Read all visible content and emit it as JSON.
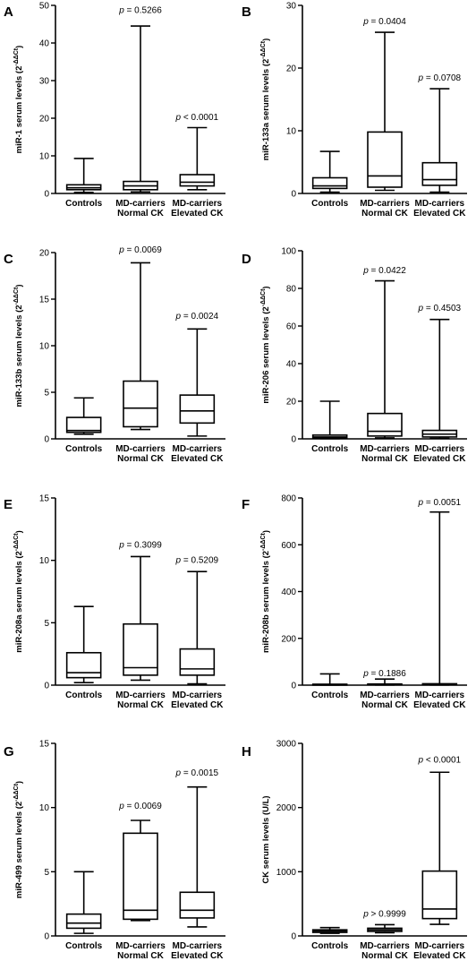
{
  "chart_data": [
    {
      "type": "box",
      "panel": "A",
      "ylabel": "miR-1 serum levels (2",
      "ylabel_sup": "-ΔΔCt",
      "ylabel_end": ")",
      "ylim": [
        0,
        50
      ],
      "yticks": [
        "0",
        "10",
        "20",
        "30",
        "40",
        "50"
      ],
      "categories": [
        [
          "Controls"
        ],
        [
          "MD-carriers",
          "Normal CK"
        ],
        [
          "MD-carriers",
          "Elevated CK"
        ]
      ],
      "boxes": [
        {
          "min": 0.3,
          "q1": 1.0,
          "median": 1.5,
          "q3": 2.3,
          "max": 9.3
        },
        {
          "min": 0.4,
          "q1": 1.0,
          "median": 2.0,
          "q3": 3.2,
          "max": 44.5
        },
        {
          "min": 1.0,
          "q1": 2.0,
          "median": 3.0,
          "q3": 5.0,
          "max": 17.5
        }
      ],
      "pvalues": [
        "",
        "p = 0.5266",
        "p < 0.0001"
      ],
      "pvalue_y": [
        null,
        48.0,
        19.5
      ]
    },
    {
      "type": "box",
      "panel": "B",
      "ylabel": "miR-133a serum levels (2",
      "ylabel_sup": "-ΔΔCt",
      "ylabel_end": ")",
      "ylim": [
        0,
        30
      ],
      "yticks": [
        "0",
        "10",
        "20",
        "30"
      ],
      "categories": [
        [
          "Controls"
        ],
        [
          "MD-carriers",
          "Normal CK"
        ],
        [
          "MD-carriers",
          "Elevated CK"
        ]
      ],
      "boxes": [
        {
          "min": 0.2,
          "q1": 0.8,
          "median": 1.2,
          "q3": 2.5,
          "max": 6.7
        },
        {
          "min": 0.5,
          "q1": 1.0,
          "median": 2.8,
          "q3": 9.8,
          "max": 25.7
        },
        {
          "min": 0.2,
          "q1": 1.3,
          "median": 2.2,
          "q3": 4.9,
          "max": 16.7
        }
      ],
      "pvalues": [
        "",
        "p = 0.0404",
        "p = 0.0708"
      ],
      "pvalue_y": [
        null,
        27.0,
        18.0
      ]
    },
    {
      "type": "box",
      "panel": "C",
      "ylabel": "miR-133b serum levels (2",
      "ylabel_sup": "-ΔΔCt",
      "ylabel_end": ")",
      "ylim": [
        0,
        20
      ],
      "yticks": [
        "0",
        "5",
        "10",
        "15",
        "20"
      ],
      "categories": [
        [
          "Controls"
        ],
        [
          "MD-carriers",
          "Normal CK"
        ],
        [
          "MD-carriers",
          "Elevated CK"
        ]
      ],
      "boxes": [
        {
          "min": 0.5,
          "q1": 0.7,
          "median": 0.9,
          "q3": 2.3,
          "max": 4.4
        },
        {
          "min": 1.0,
          "q1": 1.3,
          "median": 3.3,
          "q3": 6.2,
          "max": 18.9
        },
        {
          "min": 0.3,
          "q1": 1.7,
          "median": 3.0,
          "q3": 4.7,
          "max": 11.8
        }
      ],
      "pvalues": [
        "",
        "p = 0.0069",
        "p = 0.0024"
      ],
      "pvalue_y": [
        null,
        20.0,
        12.9
      ]
    },
    {
      "type": "box",
      "panel": "D",
      "ylabel": "miR-206 serum levels (2",
      "ylabel_sup": "-ΔΔCt",
      "ylabel_end": ")",
      "ylim": [
        0,
        100
      ],
      "yticks": [
        "0",
        "20",
        "40",
        "60",
        "80",
        "100"
      ],
      "categories": [
        [
          "Controls"
        ],
        [
          "MD-carriers",
          "Normal CK"
        ],
        [
          "MD-carriers",
          "Elevated CK"
        ]
      ],
      "boxes": [
        {
          "min": 0.1,
          "q1": 0.5,
          "median": 1.0,
          "q3": 2.0,
          "max": 20.0
        },
        {
          "min": 0.5,
          "q1": 1.5,
          "median": 4.0,
          "q3": 13.5,
          "max": 84.0
        },
        {
          "min": 0.3,
          "q1": 1.0,
          "median": 2.5,
          "q3": 4.5,
          "max": 63.5
        }
      ],
      "pvalues": [
        "",
        "p = 0.0422",
        "p = 0.4503"
      ],
      "pvalue_y": [
        null,
        88.0,
        68.0
      ]
    },
    {
      "type": "box",
      "panel": "E",
      "ylabel": "miR-208a serum levels (2",
      "ylabel_sup": "-ΔΔCt",
      "ylabel_end": ")",
      "ylim": [
        0,
        15
      ],
      "yticks": [
        "0",
        "5",
        "10",
        "15"
      ],
      "categories": [
        [
          "Controls"
        ],
        [
          "MD-carriers",
          "Normal CK"
        ],
        [
          "MD-carriers",
          "Elevated CK"
        ]
      ],
      "boxes": [
        {
          "min": 0.2,
          "q1": 0.6,
          "median": 1.0,
          "q3": 2.6,
          "max": 6.3
        },
        {
          "min": 0.4,
          "q1": 0.8,
          "median": 1.4,
          "q3": 4.9,
          "max": 10.3
        },
        {
          "min": 0.1,
          "q1": 0.8,
          "median": 1.3,
          "q3": 2.9,
          "max": 9.1
        }
      ],
      "pvalues": [
        "",
        "p = 0.3099",
        "p = 0.5209"
      ],
      "pvalue_y": [
        null,
        11.0,
        9.8
      ]
    },
    {
      "type": "box",
      "panel": "F",
      "ylabel": "miR-208b serum levels (2",
      "ylabel_sup": "-ΔΔCt",
      "ylabel_end": ")",
      "ylim": [
        0,
        800
      ],
      "yticks": [
        "0",
        "200",
        "400",
        "600",
        "800"
      ],
      "categories": [
        [
          "Controls"
        ],
        [
          "MD-carriers",
          "Normal CK"
        ],
        [
          "MD-carriers",
          "Elevated CK"
        ]
      ],
      "boxes": [
        {
          "min": 0.5,
          "q1": 1.0,
          "median": 2.0,
          "q3": 4.0,
          "max": 48.0
        },
        {
          "min": 0.5,
          "q1": 1.0,
          "median": 2.0,
          "q3": 5.0,
          "max": 26.0
        },
        {
          "min": 0.5,
          "q1": 1.0,
          "median": 3.0,
          "q3": 6.0,
          "max": 740.0
        }
      ],
      "pvalues": [
        "",
        "p = 0.1886",
        "p = 0.0051"
      ],
      "pvalue_y": [
        null,
        38.0,
        770.0
      ]
    },
    {
      "type": "box",
      "panel": "G",
      "ylabel": "miR-499 serum levels (2",
      "ylabel_sup": "-ΔΔCt",
      "ylabel_end": ")",
      "ylim": [
        0,
        15
      ],
      "yticks": [
        "0",
        "5",
        "10",
        "15"
      ],
      "categories": [
        [
          "Controls"
        ],
        [
          "MD-carriers",
          "Normal CK"
        ],
        [
          "MD-carriers",
          "Elevated CK"
        ]
      ],
      "boxes": [
        {
          "min": 0.2,
          "q1": 0.6,
          "median": 1.0,
          "q3": 1.7,
          "max": 5.0
        },
        {
          "min": 1.2,
          "q1": 1.3,
          "median": 2.0,
          "q3": 8.0,
          "max": 9.0
        },
        {
          "min": 0.7,
          "q1": 1.4,
          "median": 2.0,
          "q3": 3.4,
          "max": 11.6
        }
      ],
      "pvalues": [
        "",
        "p = 0.0069",
        "p = 0.0015"
      ],
      "pvalue_y": [
        null,
        9.9,
        12.5
      ]
    },
    {
      "type": "box",
      "panel": "H",
      "ylabel": "CK serum levels (U/L)",
      "ylabel_sup": "",
      "ylabel_end": "",
      "ylim": [
        0,
        3000
      ],
      "yticks": [
        "0",
        "1000",
        "2000",
        "3000"
      ],
      "categories": [
        [
          "Controls"
        ],
        [
          "MD-carriers",
          "Normal CK"
        ],
        [
          "MD-carriers",
          "Elevated CK"
        ]
      ],
      "boxes": [
        {
          "min": 40,
          "q1": 55,
          "median": 75,
          "q3": 95,
          "max": 130
        },
        {
          "min": 50,
          "q1": 70,
          "median": 95,
          "q3": 120,
          "max": 175
        },
        {
          "min": 180,
          "q1": 270,
          "median": 420,
          "q3": 1010,
          "max": 2550
        }
      ],
      "pvalues": [
        "",
        "p > 0.9999",
        "p < 0.0001"
      ],
      "pvalue_y": [
        null,
        300,
        2700
      ]
    }
  ]
}
